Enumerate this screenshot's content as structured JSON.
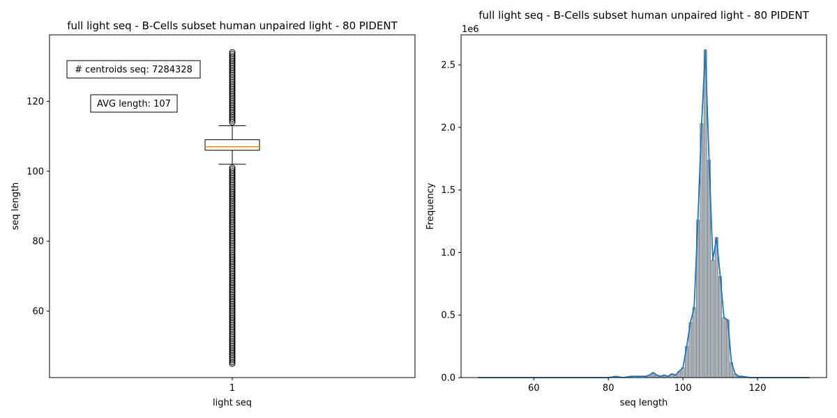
{
  "chart_data": [
    {
      "type": "box",
      "title": "full light seq - B-Cells subset human unpaired light - 80 PIDENT",
      "xlabel": "light seq",
      "ylabel": "seq length",
      "categories": [
        "1"
      ],
      "ylim": [
        41,
        139
      ],
      "yticks": [
        "60",
        "80",
        "100",
        "120"
      ],
      "box": {
        "q1": 106,
        "median": 107,
        "q3": 109,
        "whisker_low": 102,
        "whisker_high": 113
      },
      "outliers_low_range": [
        45,
        101
      ],
      "outliers_high_range": [
        114,
        134
      ],
      "annotations": [
        "# centroids seq: 7284328",
        "AVG length: 107"
      ],
      "colors": {
        "box": "#000000",
        "median": "#ff7f0e"
      }
    },
    {
      "type": "histogram",
      "title": "full light seq - B-Cells subset human unpaired light - 80 PIDENT",
      "xlabel": "seq length",
      "ylabel": "Frequency",
      "y_scale_label": "1e6",
      "xlim": [
        40.5,
        138.5
      ],
      "ylim": [
        0,
        2.74
      ],
      "xticks": [
        "60",
        "80",
        "100",
        "120"
      ],
      "yticks": [
        "0.0",
        "0.5",
        "1.0",
        "1.5",
        "2.0",
        "2.5"
      ],
      "x": [
        45,
        50,
        55,
        60,
        65,
        70,
        75,
        80,
        82,
        84,
        86,
        88,
        90,
        91,
        92,
        93,
        94,
        95,
        96,
        97,
        98,
        99,
        100,
        101,
        102,
        103,
        104,
        105,
        106,
        107,
        108,
        109,
        110,
        111,
        112,
        113,
        114,
        115,
        116,
        118,
        120,
        125,
        130,
        134
      ],
      "values": [
        0.0,
        0.0,
        0.0,
        0.0,
        0.0,
        0.0,
        0.0,
        0.0,
        0.01,
        0.0,
        0.01,
        0.01,
        0.01,
        0.02,
        0.04,
        0.02,
        0.01,
        0.02,
        0.01,
        0.03,
        0.02,
        0.05,
        0.08,
        0.25,
        0.44,
        0.56,
        1.26,
        2.03,
        2.62,
        1.74,
        0.94,
        1.12,
        0.81,
        0.48,
        0.46,
        0.12,
        0.03,
        0.01,
        0.01,
        0.0,
        0.0,
        0.0,
        0.0,
        0.0
      ],
      "colors": {
        "line": "#1f77b4",
        "bars": "#8c9aa8"
      }
    }
  ]
}
